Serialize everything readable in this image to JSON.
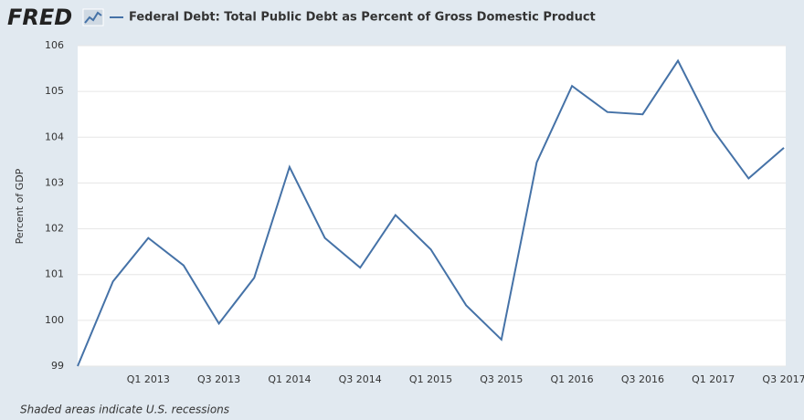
{
  "header": {
    "logo": "FRED"
  },
  "chart_data": {
    "type": "line",
    "ylabel": "Percent of GDP",
    "note": "Shaded areas indicate U.S. recessions",
    "categories": [
      null,
      null,
      "Q1 2013",
      null,
      "Q3 2013",
      null,
      "Q1 2014",
      null,
      "Q3 2014",
      null,
      "Q1 2015",
      null,
      "Q3 2015",
      null,
      "Q1 2016",
      null,
      "Q3 2016",
      null,
      "Q1 2017",
      null,
      "Q3 2017"
    ],
    "series": [
      {
        "name": "Federal Debt: Total Public Debt as Percent of Gross Domestic Product",
        "color": "#4572a7",
        "values": [
          99.0,
          100.85,
          101.8,
          101.2,
          99.93,
          100.93,
          103.35,
          101.8,
          101.15,
          102.3,
          101.55,
          100.33,
          99.58,
          103.45,
          105.12,
          104.55,
          104.5,
          105.67,
          104.15,
          103.1,
          103.77
        ]
      }
    ],
    "ylim": [
      99,
      106
    ],
    "yticks": [
      99,
      100,
      101,
      102,
      103,
      104,
      105,
      106
    ],
    "grid": true
  }
}
